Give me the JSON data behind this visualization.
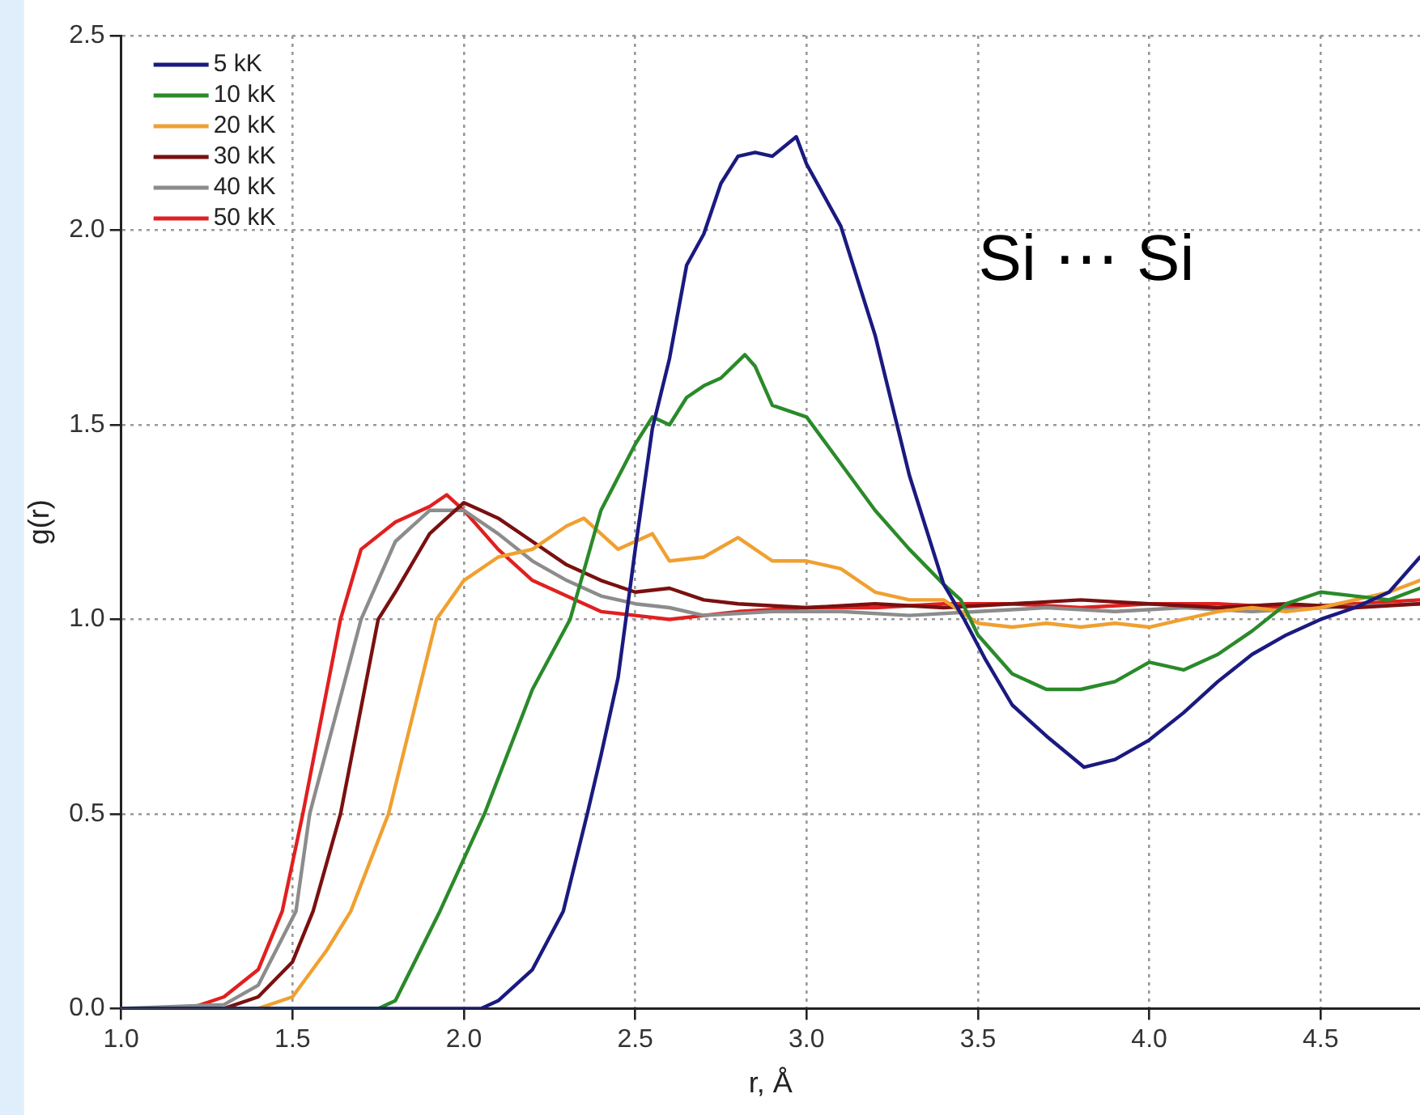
{
  "chart_data": {
    "type": "line",
    "xlabel": "r, Å",
    "ylabel": "g(r)",
    "annotations": [
      "Si ⋯ Si"
    ],
    "xlim": [
      1.0,
      4.79
    ],
    "ylim": [
      0,
      2.5
    ],
    "xticks": [
      {
        "value": 1.0,
        "label": "1.0"
      },
      {
        "value": 1.5,
        "label": "1.5"
      },
      {
        "value": 2.0,
        "label": "2.0"
      },
      {
        "value": 2.5,
        "label": "2.5"
      },
      {
        "value": 3.0,
        "label": "3.0"
      },
      {
        "value": 3.5,
        "label": "3.5"
      },
      {
        "value": 4.0,
        "label": "4.0"
      },
      {
        "value": 4.5,
        "label": "4.5"
      }
    ],
    "yticks": [
      {
        "value": 0,
        "label": "0.0"
      },
      {
        "value": 0.5,
        "label": "0.5"
      },
      {
        "value": 1.0,
        "label": "1.0"
      },
      {
        "value": 1.5,
        "label": "1.5"
      },
      {
        "value": 2.0,
        "label": "2.0"
      },
      {
        "value": 2.5,
        "label": "2.5"
      }
    ],
    "grid": true,
    "legend": "top left",
    "marker": "none",
    "line_style": "solid",
    "series": [
      {
        "name": "5 kK",
        "color": "#1a1a80",
        "x": [
          1.0,
          1.5,
          2.0,
          2.05,
          2.1,
          2.2,
          2.29,
          2.36,
          2.4,
          2.45,
          2.5,
          2.55,
          2.6,
          2.65,
          2.7,
          2.75,
          2.8,
          2.85,
          2.9,
          2.97,
          3.0,
          3.1,
          3.2,
          3.3,
          3.4,
          3.46,
          3.52,
          3.6,
          3.7,
          3.81,
          3.9,
          4.0,
          4.1,
          4.2,
          4.3,
          4.4,
          4.5,
          4.6,
          4.7,
          4.79
        ],
        "values": [
          0,
          0,
          0,
          0,
          0.02,
          0.1,
          0.25,
          0.5,
          0.65,
          0.85,
          1.18,
          1.49,
          1.67,
          1.91,
          1.99,
          2.12,
          2.19,
          2.2,
          2.19,
          2.24,
          2.17,
          2.01,
          1.73,
          1.37,
          1.09,
          1.0,
          0.9,
          0.78,
          0.7,
          0.62,
          0.64,
          0.69,
          0.76,
          0.84,
          0.91,
          0.96,
          1.0,
          1.03,
          1.07,
          1.16
        ]
      },
      {
        "name": "10 kK",
        "color": "#2a8a2a",
        "x": [
          1.0,
          1.5,
          1.75,
          1.8,
          1.93,
          2.06,
          2.2,
          2.31,
          2.4,
          2.5,
          2.55,
          2.6,
          2.65,
          2.7,
          2.75,
          2.82,
          2.85,
          2.9,
          3.0,
          3.1,
          3.2,
          3.3,
          3.4,
          3.45,
          3.5,
          3.6,
          3.7,
          3.8,
          3.9,
          4.0,
          4.1,
          4.2,
          4.3,
          4.4,
          4.5,
          4.6,
          4.7,
          4.79
        ],
        "values": [
          0,
          0,
          0,
          0.02,
          0.25,
          0.5,
          0.82,
          1.0,
          1.28,
          1.45,
          1.52,
          1.5,
          1.57,
          1.6,
          1.62,
          1.68,
          1.65,
          1.55,
          1.52,
          1.4,
          1.28,
          1.18,
          1.09,
          1.05,
          0.96,
          0.86,
          0.82,
          0.82,
          0.84,
          0.89,
          0.87,
          0.91,
          0.97,
          1.04,
          1.07,
          1.06,
          1.05,
          1.08
        ]
      },
      {
        "name": "20 kK",
        "color": "#f0a030",
        "x": [
          1.0,
          1.4,
          1.5,
          1.6,
          1.67,
          1.78,
          1.92,
          2.0,
          2.1,
          2.2,
          2.3,
          2.35,
          2.4,
          2.45,
          2.5,
          2.55,
          2.6,
          2.7,
          2.8,
          2.9,
          3.0,
          3.1,
          3.2,
          3.3,
          3.4,
          3.5,
          3.6,
          3.7,
          3.8,
          3.9,
          4.0,
          4.1,
          4.2,
          4.3,
          4.4,
          4.5,
          4.6,
          4.7,
          4.79
        ],
        "values": [
          0,
          0,
          0.03,
          0.15,
          0.25,
          0.5,
          1.0,
          1.1,
          1.16,
          1.18,
          1.24,
          1.26,
          1.22,
          1.18,
          1.2,
          1.22,
          1.15,
          1.16,
          1.21,
          1.15,
          1.15,
          1.13,
          1.07,
          1.05,
          1.05,
          0.99,
          0.98,
          0.99,
          0.98,
          0.99,
          0.98,
          1.0,
          1.02,
          1.03,
          1.02,
          1.03,
          1.05,
          1.07,
          1.1
        ]
      },
      {
        "name": "30 kK",
        "color": "#7a1010",
        "x": [
          1.0,
          1.3,
          1.4,
          1.5,
          1.56,
          1.64,
          1.75,
          1.8,
          1.9,
          2.0,
          2.05,
          2.1,
          2.2,
          2.3,
          2.4,
          2.5,
          2.6,
          2.7,
          2.8,
          3.0,
          3.2,
          3.4,
          3.6,
          3.8,
          4.0,
          4.2,
          4.4,
          4.6,
          4.79
        ],
        "values": [
          0,
          0,
          0.03,
          0.12,
          0.25,
          0.5,
          1.0,
          1.07,
          1.22,
          1.3,
          1.28,
          1.26,
          1.2,
          1.14,
          1.1,
          1.07,
          1.08,
          1.05,
          1.04,
          1.03,
          1.04,
          1.03,
          1.04,
          1.05,
          1.04,
          1.03,
          1.04,
          1.03,
          1.04
        ]
      },
      {
        "name": "40 kK",
        "color": "#8c8c8c",
        "x": [
          1.0,
          1.3,
          1.4,
          1.51,
          1.55,
          1.7,
          1.8,
          1.9,
          2.0,
          2.1,
          2.2,
          2.3,
          2.4,
          2.5,
          2.6,
          2.7,
          2.9,
          3.1,
          3.3,
          3.5,
          3.7,
          3.9,
          4.1,
          4.3,
          4.5,
          4.79
        ],
        "values": [
          0,
          0.01,
          0.06,
          0.25,
          0.5,
          1.0,
          1.2,
          1.28,
          1.28,
          1.22,
          1.15,
          1.1,
          1.06,
          1.04,
          1.03,
          1.01,
          1.02,
          1.02,
          1.01,
          1.02,
          1.03,
          1.02,
          1.03,
          1.02,
          1.03,
          1.04
        ]
      },
      {
        "name": "50 kK",
        "color": "#e02020",
        "x": [
          1.0,
          1.2,
          1.3,
          1.4,
          1.47,
          1.53,
          1.64,
          1.7,
          1.8,
          1.9,
          1.95,
          2.0,
          2.1,
          2.2,
          2.3,
          2.4,
          2.5,
          2.6,
          2.8,
          3.0,
          3.2,
          3.4,
          3.6,
          3.8,
          4.0,
          4.2,
          4.4,
          4.6,
          4.79
        ],
        "values": [
          0,
          0,
          0.03,
          0.1,
          0.25,
          0.5,
          1.0,
          1.18,
          1.25,
          1.29,
          1.32,
          1.28,
          1.18,
          1.1,
          1.06,
          1.02,
          1.01,
          1.0,
          1.02,
          1.03,
          1.03,
          1.04,
          1.04,
          1.03,
          1.04,
          1.04,
          1.03,
          1.04,
          1.05
        ]
      }
    ]
  }
}
